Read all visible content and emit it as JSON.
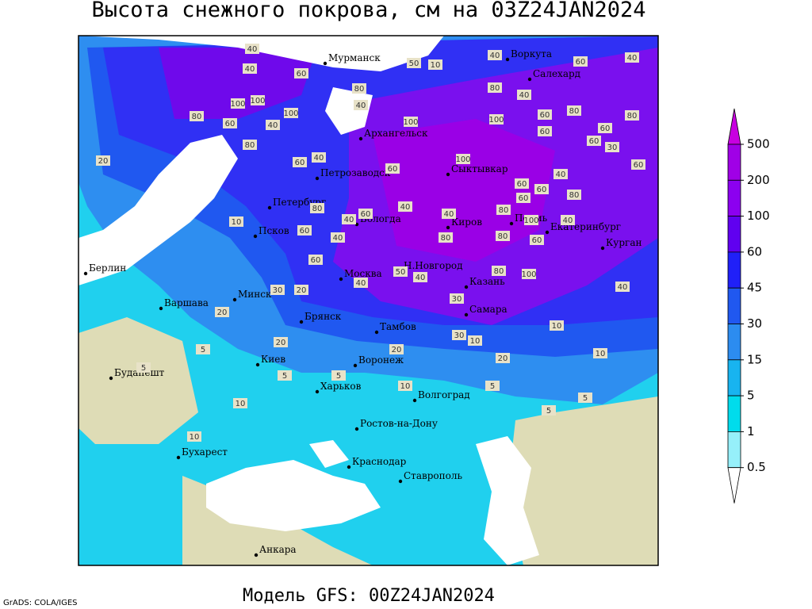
{
  "title": "Высота снежного покрова, см на 03Z24JAN2024",
  "footer": "Модель GFS: 00Z24JAN2024",
  "credit": "GrADS: COLA/IGES",
  "legend": {
    "levels": [
      500,
      200,
      100,
      60,
      45,
      30,
      15,
      5,
      1,
      0.5
    ],
    "colors": [
      "#c800e0",
      "#a000e6",
      "#8c00f0",
      "#6000f0",
      "#2020f8",
      "#2058f0",
      "#2c8cf0",
      "#18b4f0",
      "#00dcec",
      "#96f0fa",
      "#ffffff"
    ]
  },
  "cities": [
    "Мурманск",
    "Воркута",
    "Салехард",
    "Архангельск",
    "Сыктывкар",
    "Петрозаводск",
    "Петербург",
    "Вологда",
    "Киров",
    "Пермь",
    "Екатеринбург",
    "Курган",
    "Псков",
    "Берлин",
    "Москва",
    "Н.Новгород",
    "Казань",
    "Минск",
    "Варшава",
    "Брянск",
    "Тамбов",
    "Самара",
    "Киев",
    "Воронеж",
    "Будапешт",
    "Харьков",
    "Волгоград",
    "Ростов-на-Дону",
    "Бухарест",
    "Краснодар",
    "Ставрополь",
    "Анкара"
  ],
  "contour_labels": [
    40,
    50,
    10,
    40,
    40,
    60,
    40,
    60,
    80,
    100,
    100,
    80,
    40,
    40,
    100,
    100,
    60,
    100,
    80,
    60,
    80,
    80,
    60,
    60,
    40,
    60,
    80,
    30,
    20,
    60,
    40,
    100,
    60,
    60,
    60,
    60,
    80,
    60,
    40,
    80,
    40,
    80,
    100,
    40,
    40,
    10,
    60,
    40,
    60,
    80,
    40,
    60,
    80,
    60,
    80,
    100,
    40,
    20,
    50,
    40,
    40,
    30,
    30,
    20,
    20,
    30,
    10,
    10,
    20,
    20,
    10,
    5,
    5,
    5,
    10,
    5,
    5,
    5,
    5,
    10,
    10
  ]
}
